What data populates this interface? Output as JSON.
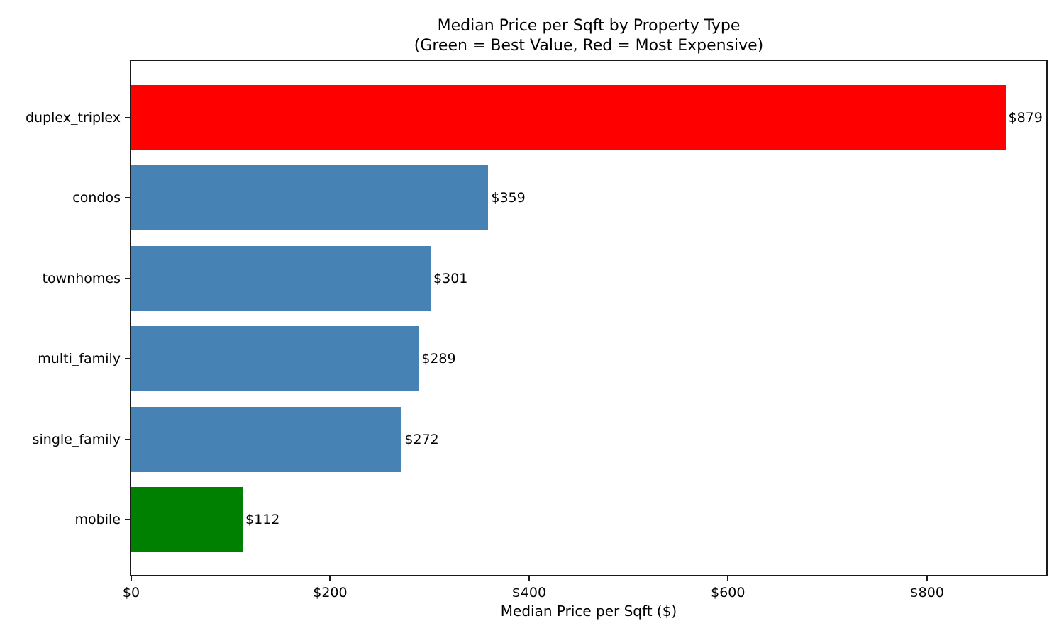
{
  "chart_data": {
    "type": "bar",
    "orientation": "horizontal",
    "title": "Median Price per Sqft by Property Type",
    "subtitle": "(Green = Best Value, Red = Most Expensive)",
    "xlabel": "Median Price per Sqft ($)",
    "ylabel": "",
    "categories": [
      "duplex_triplex",
      "condos",
      "townhomes",
      "multi_family",
      "single_family",
      "mobile"
    ],
    "values": [
      879,
      359,
      301,
      289,
      272,
      112
    ],
    "value_labels": [
      "$879",
      "$359",
      "$301",
      "$289",
      "$272",
      "$112"
    ],
    "bar_colors": [
      "#ff0000",
      "#4682b4",
      "#4682b4",
      "#4682b4",
      "#4682b4",
      "#008000"
    ],
    "xlim": [
      0,
      920
    ],
    "x_ticks": [
      0,
      200,
      400,
      600,
      800
    ],
    "x_tick_labels": [
      "$0",
      "$200",
      "$400",
      "$600",
      "$800"
    ],
    "grid": false,
    "legend_position": "none"
  },
  "colors": {
    "background": "#ffffff",
    "axis": "#1a1a1a",
    "text": "#000000",
    "bar_default": "#4682b4",
    "bar_best_value": "#008000",
    "bar_most_expensive": "#ff0000"
  }
}
